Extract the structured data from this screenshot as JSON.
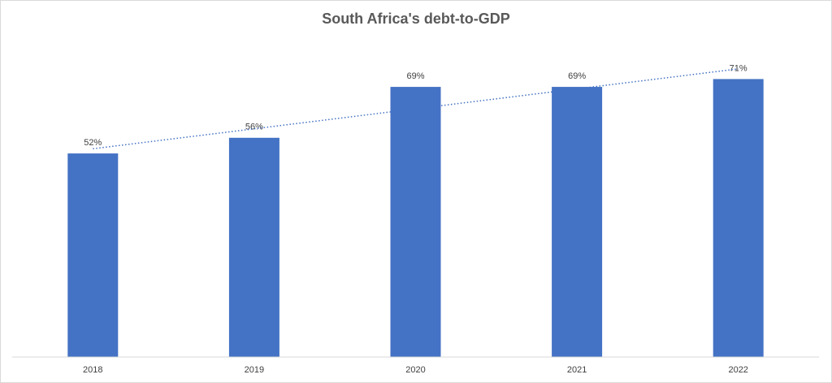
{
  "chart_data": {
    "type": "bar",
    "title": "South Africa's debt-to-GDP",
    "categories": [
      "2018",
      "2019",
      "2020",
      "2021",
      "2022"
    ],
    "values": [
      52,
      56,
      69,
      69,
      71
    ],
    "value_labels": [
      "52%",
      "56%",
      "69%",
      "69%",
      "71%"
    ],
    "color": "#4472c4",
    "ylim": [
      0,
      80
    ],
    "trendline": "linear",
    "trendline_color": "#4472c4"
  }
}
